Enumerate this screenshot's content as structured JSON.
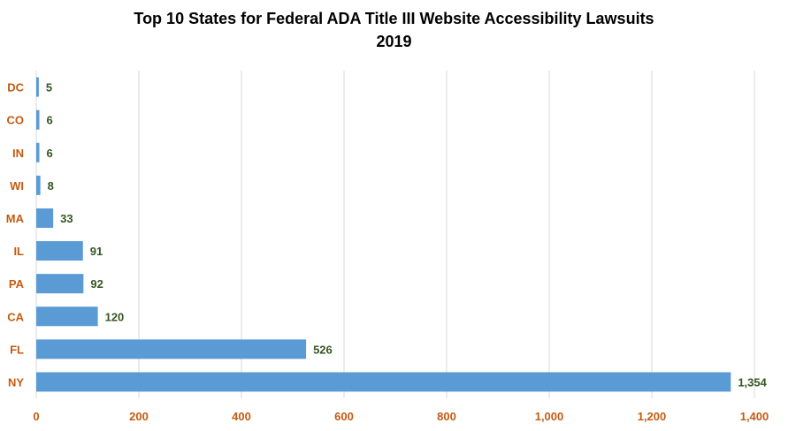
{
  "colors": {
    "bar": "#5B9BD5",
    "axis_label": "#C55A11",
    "data_label": "#375623",
    "gridline": "#D9D9D9",
    "title": "#000000"
  },
  "chart_data": {
    "type": "bar",
    "orientation": "horizontal",
    "title": "Top 10 States for Federal ADA Title III Website Accessibility Lawsuits",
    "subtitle": "2019",
    "xlabel": "",
    "ylabel": "",
    "categories": [
      "DC",
      "CO",
      "IN",
      "WI",
      "MA",
      "IL",
      "PA",
      "CA",
      "FL",
      "NY"
    ],
    "values": [
      5,
      6,
      6,
      8,
      33,
      91,
      92,
      120,
      526,
      1354
    ],
    "data_labels": [
      "5",
      "6",
      "6",
      "8",
      "33",
      "91",
      "92",
      "120",
      "526",
      "1,354"
    ],
    "xlim": [
      0,
      1400
    ],
    "x_ticks": [
      0,
      200,
      400,
      600,
      800,
      1000,
      1200,
      1400
    ],
    "x_tick_labels": [
      "0",
      "200",
      "400",
      "600",
      "800",
      "1,000",
      "1,200",
      "1,400"
    ],
    "grid": true,
    "legend": "none"
  }
}
